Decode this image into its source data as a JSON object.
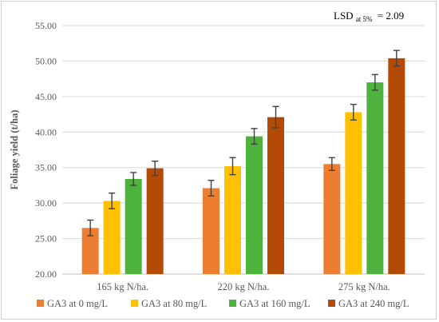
{
  "chart_data": {
    "type": "bar",
    "ylabel": "Foliage yield (t/ha)",
    "xlabel": "",
    "title": "",
    "ylim": [
      20,
      55
    ],
    "ytick_step": 5,
    "ytick_labels": [
      "20.00",
      "25.00",
      "30.00",
      "35.00",
      "40.00",
      "45.00",
      "50.00",
      "55.00"
    ],
    "grid": true,
    "legend_position": "bottom",
    "categories": [
      "165 kg N/ha.",
      "220 kg N/ha.",
      "275 kg N/ha."
    ],
    "series": [
      {
        "name": "GA3 at 0 mg/L",
        "color": "#ED7D31",
        "values": [
          26.5,
          32.1,
          35.5
        ],
        "errors": [
          1.1,
          1.1,
          0.9
        ]
      },
      {
        "name": "GA3 at 80 mg/L",
        "color": "#FFC000",
        "values": [
          30.3,
          35.2,
          42.8
        ],
        "errors": [
          1.1,
          1.2,
          1.1
        ]
      },
      {
        "name": "GA3 at 160 mg/L",
        "color": "#4DB33D",
        "values": [
          33.4,
          39.4,
          47.0
        ],
        "errors": [
          0.9,
          1.1,
          1.1
        ]
      },
      {
        "name": "GA3 at 240 mg/L",
        "color": "#B34A06",
        "values": [
          34.9,
          42.1,
          50.4
        ],
        "errors": [
          1.0,
          1.5,
          1.1
        ]
      }
    ],
    "annotation": {
      "main": "LSD",
      "sub": "at 5%",
      "value": "= 2.09"
    }
  }
}
